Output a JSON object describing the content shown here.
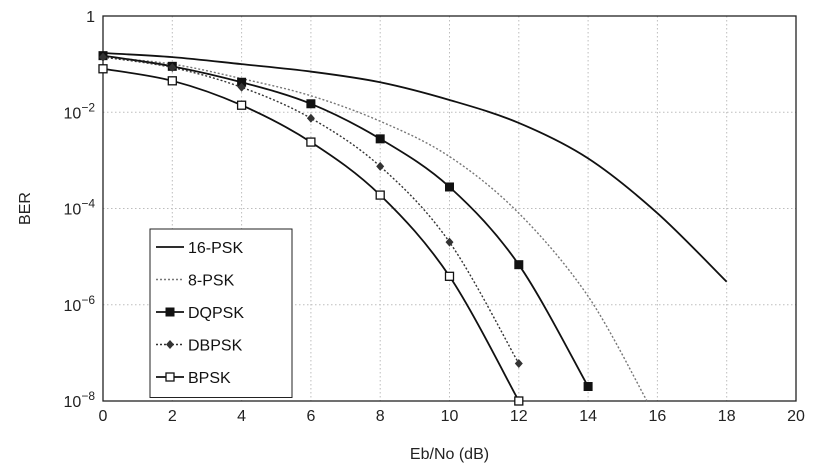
{
  "chart_data": {
    "type": "line",
    "title": "",
    "xlabel": "Eb/No (dB)",
    "ylabel": "BER",
    "xlim": [
      0,
      20
    ],
    "ylim": [
      1e-08,
      1
    ],
    "yscale": "log",
    "grid": true,
    "legend_position": "bottom-left",
    "x_ticks": [
      0,
      2,
      4,
      6,
      8,
      10,
      12,
      14,
      16,
      18,
      20
    ],
    "x_tick_labels": [
      "0",
      "2",
      "4",
      "6",
      "8",
      "10",
      "12",
      "14",
      "16",
      "18",
      "20"
    ],
    "y_ticks": [
      1e-08,
      1e-06,
      0.0001,
      0.01,
      1
    ],
    "y_tick_labels": [
      {
        "base": "10",
        "exp": "−8"
      },
      {
        "base": "10",
        "exp": "−6"
      },
      {
        "base": "10",
        "exp": "−4"
      },
      {
        "base": "10",
        "exp": "−2"
      },
      {
        "base": "1",
        "exp": ""
      }
    ],
    "series": [
      {
        "name": "16-PSK",
        "marker": "none",
        "color": "#111111",
        "line": "solid",
        "x": [
          0,
          2,
          4,
          6,
          8,
          10,
          12,
          14,
          16,
          18
        ],
        "y": [
          0.17,
          0.14,
          0.1,
          0.07,
          0.042,
          0.018,
          0.006,
          0.0011,
          8e-05,
          3e-06
        ]
      },
      {
        "name": "8-PSK",
        "marker": "none",
        "color": "#777777",
        "line": "dotted",
        "x": [
          0,
          2,
          4,
          6,
          8,
          10,
          12,
          14,
          15.7
        ],
        "y": [
          0.14,
          0.1,
          0.05,
          0.022,
          0.0065,
          0.0012,
          8e-05,
          1.5e-06,
          1e-08
        ]
      },
      {
        "name": "DQPSK",
        "marker": "filled-square",
        "color": "#111111",
        "line": "solid",
        "x": [
          0,
          2,
          4,
          6,
          8,
          10,
          12,
          14
        ],
        "y": [
          0.15,
          0.09,
          0.042,
          0.015,
          0.0028,
          0.00028,
          6.8e-06,
          2e-08
        ]
      },
      {
        "name": "DBPSK",
        "marker": "diamond",
        "color": "#333333",
        "line": "dotted",
        "x": [
          0,
          2,
          4,
          6,
          8,
          10,
          12
        ],
        "y": [
          0.14,
          0.085,
          0.033,
          0.0075,
          0.00075,
          2e-05,
          6e-08
        ]
      },
      {
        "name": "BPSK",
        "marker": "open-square",
        "color": "#111111",
        "line": "solid",
        "x": [
          0,
          2,
          4,
          6,
          8,
          10,
          12
        ],
        "y": [
          0.08,
          0.045,
          0.014,
          0.0024,
          0.00019,
          3.9e-06,
          1e-08
        ]
      }
    ]
  }
}
